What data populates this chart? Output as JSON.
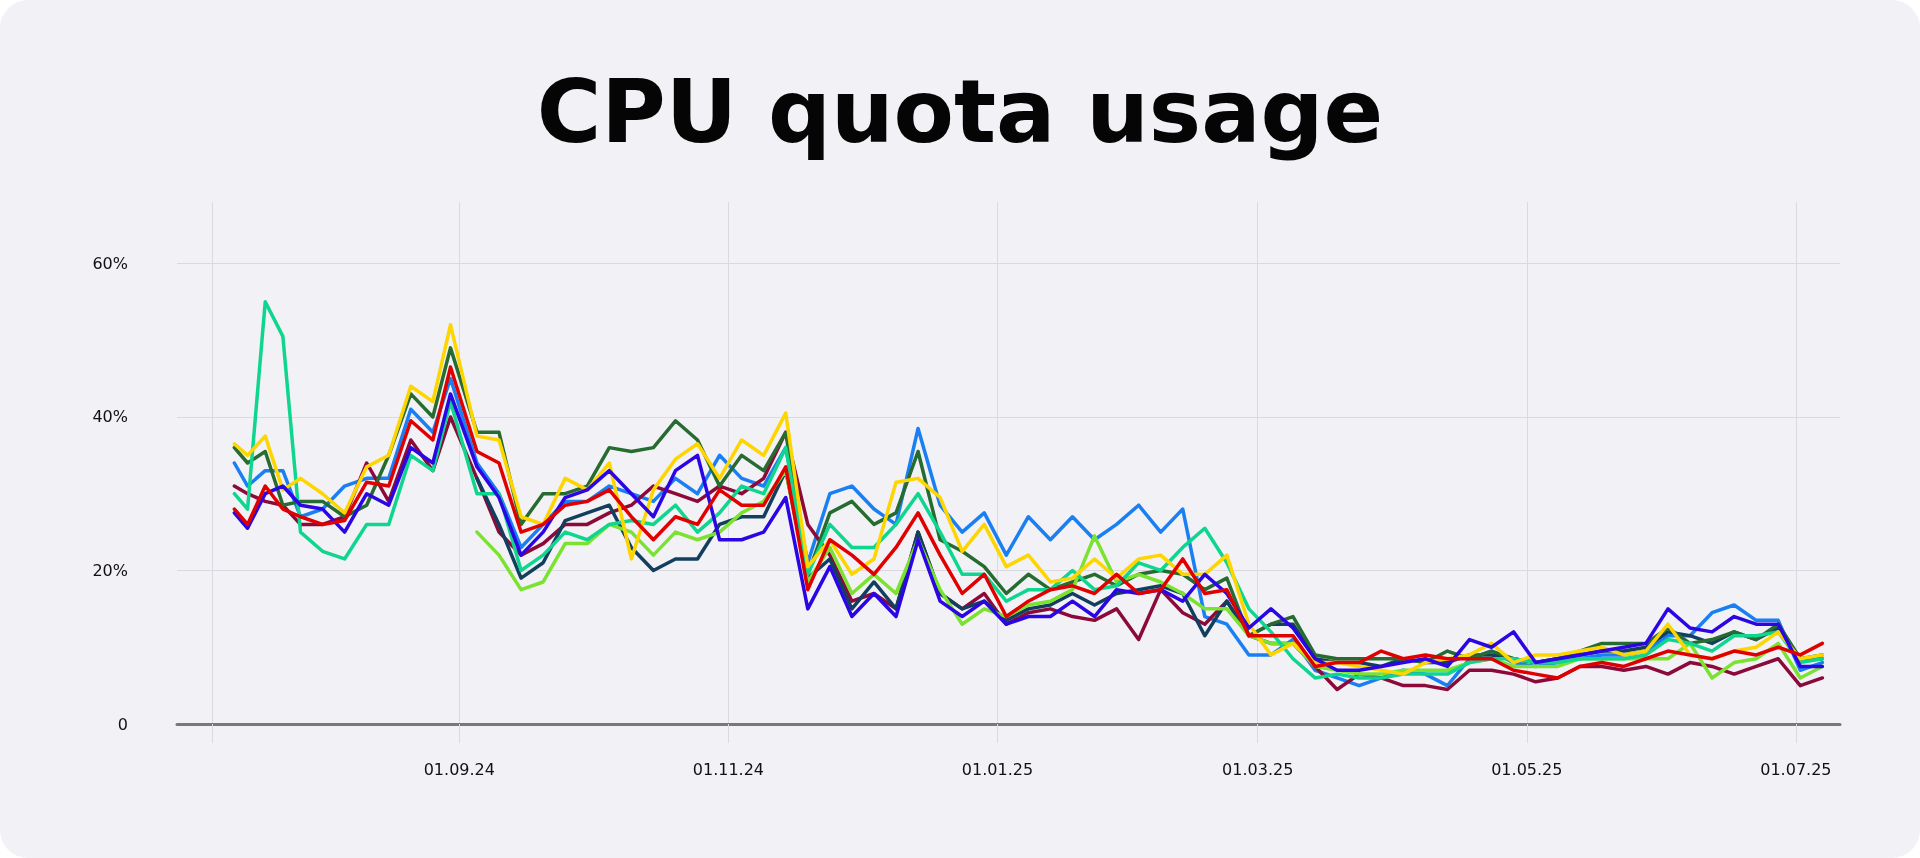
{
  "chart_data": {
    "type": "line",
    "title": "CPU quota usage",
    "x": [
      "2024-07-12",
      "2024-07-15",
      "2024-07-19",
      "2024-07-23",
      "2024-07-27",
      "2024-08-01",
      "2024-08-06",
      "2024-08-11",
      "2024-08-16",
      "2024-08-21",
      "2024-08-26",
      "2024-08-30",
      "2024-09-05",
      "2024-09-10",
      "2024-09-15",
      "2024-09-20",
      "2024-09-25",
      "2024-09-30",
      "2024-10-05",
      "2024-10-10",
      "2024-10-15",
      "2024-10-20",
      "2024-10-25",
      "2024-10-30",
      "2024-11-04",
      "2024-11-09",
      "2024-11-14",
      "2024-11-19",
      "2024-11-24",
      "2024-11-29",
      "2024-12-04",
      "2024-12-09",
      "2024-12-14",
      "2024-12-19",
      "2024-12-24",
      "2024-12-29",
      "2025-01-03",
      "2025-01-08",
      "2025-01-13",
      "2025-01-18",
      "2025-01-23",
      "2025-01-28",
      "2025-02-02",
      "2025-02-07",
      "2025-02-12",
      "2025-02-17",
      "2025-02-22",
      "2025-02-27",
      "2025-03-04",
      "2025-03-09",
      "2025-03-14",
      "2025-03-19",
      "2025-03-24",
      "2025-03-29",
      "2025-04-03",
      "2025-04-08",
      "2025-04-13",
      "2025-04-18",
      "2025-04-23",
      "2025-04-28",
      "2025-05-03",
      "2025-05-08",
      "2025-05-13",
      "2025-05-18",
      "2025-05-23",
      "2025-05-28",
      "2025-06-02",
      "2025-06-07",
      "2025-06-12",
      "2025-06-17",
      "2025-06-22",
      "2025-06-27",
      "2025-07-02",
      "2025-07-07"
    ],
    "xlim": [
      "2024-06-29",
      "2025-07-11"
    ],
    "xticks": [
      {
        "value": "2024-07-07",
        "label": null
      },
      {
        "value": "2024-09-01",
        "label": "01.09.24"
      },
      {
        "value": "2024-11-01",
        "label": "01.11.24"
      },
      {
        "value": "2025-01-01",
        "label": "01.01.25"
      },
      {
        "value": "2025-03-01",
        "label": "01.03.25"
      },
      {
        "value": "2025-05-01",
        "label": "01.05.25"
      },
      {
        "value": "2025-07-01",
        "label": "01.07.25"
      }
    ],
    "ylim": [
      0,
      68
    ],
    "yticks": [
      0,
      {
        "value": 20,
        "label": "20%"
      },
      {
        "value": 40,
        "label": "40%"
      },
      {
        "value": 60,
        "label": "60%"
      }
    ],
    "grid": true,
    "series": [
      {
        "color": "#1a7ff2",
        "values": [
          34,
          31,
          33,
          33,
          27,
          28,
          31,
          32,
          32,
          41,
          38,
          45,
          34,
          30,
          23,
          26,
          29,
          29,
          31,
          30,
          29,
          32,
          30,
          35,
          32,
          31,
          36,
          21,
          30,
          31,
          28,
          26,
          38.5,
          28.5,
          25,
          27.5,
          22,
          27,
          24,
          27,
          24,
          26,
          28.5,
          25,
          28,
          14,
          13,
          9,
          9,
          11,
          7,
          6,
          5,
          6,
          7,
          6.5,
          5,
          8.5,
          9.5,
          8,
          7.5,
          8,
          8.5,
          9,
          9,
          9.5,
          11.5,
          11.5,
          14.5,
          15.5,
          13.5,
          13.5,
          7,
          8
        ]
      },
      {
        "color": "#8c0a3a",
        "values": [
          31,
          30,
          29,
          28.5,
          26,
          26,
          27,
          34,
          29,
          37,
          33,
          40,
          32,
          25,
          22,
          23.5,
          26,
          26,
          27.5,
          28.5,
          31,
          30,
          29,
          31,
          30,
          32,
          38,
          26,
          22,
          16,
          17,
          15,
          25,
          17,
          15,
          17,
          13,
          14.5,
          15,
          14,
          13.5,
          15,
          11,
          17.5,
          14.5,
          13,
          16,
          11.5,
          10.5,
          10.5,
          7.5,
          4.5,
          6.5,
          6,
          5,
          5,
          4.5,
          7,
          7,
          6.5,
          5.5,
          6,
          7.5,
          7.5,
          7,
          7.5,
          6.5,
          8,
          7.5,
          6.5,
          7.5,
          8.5,
          5,
          6
        ]
      },
      {
        "color": "#123f5e",
        "values": [
          null,
          null,
          null,
          null,
          null,
          null,
          null,
          null,
          null,
          null,
          null,
          null,
          32,
          26,
          19,
          21,
          26.5,
          27.5,
          28.5,
          23,
          20,
          21.5,
          21.5,
          26,
          27,
          27,
          33,
          19,
          21.5,
          15,
          18.5,
          15,
          25,
          17,
          15,
          16,
          13.5,
          15,
          15.5,
          17,
          15.5,
          17,
          17.5,
          18,
          17,
          11.5,
          16,
          11.5,
          13,
          13,
          8.5,
          8,
          8,
          7.5,
          8.5,
          8,
          8,
          9,
          9,
          8.5,
          8,
          8.5,
          9,
          9.5,
          9.5,
          10,
          12,
          11.5,
          10.5,
          12,
          11,
          12.5,
          8.5,
          8.5
        ]
      },
      {
        "color": "#266b2f",
        "values": [
          36,
          34,
          35.5,
          28.5,
          29,
          29,
          27,
          28.5,
          35,
          43,
          40,
          49,
          38,
          38,
          26,
          30,
          30,
          31,
          36,
          35.5,
          36,
          39.5,
          37,
          31,
          35,
          33,
          38,
          19.5,
          27.5,
          29,
          26,
          27.5,
          35.5,
          24,
          22.5,
          20.5,
          17,
          19.5,
          17.5,
          18.5,
          19.5,
          18,
          19.5,
          20,
          19.5,
          17.5,
          19,
          11.5,
          13,
          14,
          9,
          8.5,
          8.5,
          8.5,
          8.5,
          8,
          9.5,
          8.5,
          9.5,
          8.5,
          8,
          8.5,
          9.5,
          10.5,
          10.5,
          10.5,
          12.5,
          10.5,
          11,
          12,
          11,
          13,
          8.5,
          9
        ]
      },
      {
        "color": "#7be22f",
        "values": [
          null,
          null,
          null,
          null,
          null,
          null,
          null,
          null,
          null,
          null,
          null,
          null,
          25,
          22,
          17.5,
          18.5,
          23.5,
          23.5,
          26,
          25,
          22,
          25,
          24,
          25,
          27.5,
          29,
          33,
          18.5,
          23,
          17,
          19.5,
          17,
          24,
          17.5,
          13,
          15,
          14,
          15.5,
          16,
          17.5,
          24.5,
          18.5,
          19.5,
          18.5,
          17,
          15,
          15,
          11.5,
          10.5,
          10.5,
          7.5,
          7,
          6.5,
          6.5,
          7,
          7,
          7,
          8,
          8.5,
          7.5,
          7.5,
          7.5,
          8.5,
          8.5,
          8.5,
          8.5,
          8.5,
          10.5,
          6,
          8,
          8.5,
          10.5,
          6,
          7.5
        ]
      },
      {
        "color": "#0fd68e",
        "values": [
          30,
          28,
          55,
          50.5,
          25,
          22.5,
          21.5,
          26,
          26,
          35,
          33,
          42,
          30,
          30,
          20,
          22,
          25,
          24,
          26,
          26.5,
          26,
          28.5,
          25,
          27.5,
          31,
          30,
          36,
          19.5,
          26,
          23,
          23,
          26,
          30,
          25,
          19.5,
          19.5,
          16,
          17.5,
          17.5,
          20,
          17.5,
          18,
          21,
          20,
          23,
          25.5,
          21,
          15,
          12,
          8.5,
          6,
          6.5,
          6,
          6,
          6.5,
          6.5,
          6.5,
          8,
          8.5,
          8.5,
          8,
          8,
          8.5,
          8.5,
          8.5,
          9,
          11,
          10.5,
          9.5,
          11.5,
          11.5,
          12,
          8,
          8.5
        ]
      },
      {
        "color": "#ffd500",
        "values": [
          36.5,
          35,
          37.5,
          30.5,
          32,
          30,
          27.5,
          33.5,
          35,
          44,
          42,
          52,
          37.5,
          37,
          27,
          26,
          32,
          30.5,
          34,
          21.5,
          30.5,
          34.5,
          36.5,
          32,
          37,
          35,
          40.5,
          20.5,
          24,
          19.5,
          21.5,
          31.5,
          32,
          29.5,
          22.5,
          26,
          20.5,
          22,
          18.5,
          19,
          21.5,
          19,
          21.5,
          22,
          19.5,
          19.5,
          22,
          13,
          9,
          10.5,
          8,
          8,
          7.5,
          7,
          6.5,
          8,
          8.5,
          9,
          10.5,
          8,
          9,
          9,
          9.5,
          10,
          9,
          9.5,
          13,
          9,
          8.5,
          9.5,
          10,
          12,
          8.5,
          9
        ]
      },
      {
        "color": "#2b05e3",
        "values": [
          27.5,
          25.5,
          30,
          31,
          28.5,
          28,
          25,
          30,
          28.5,
          36,
          34,
          43,
          33.5,
          29.5,
          22,
          25,
          29.5,
          30.5,
          33,
          30,
          27,
          33,
          35,
          24,
          24,
          25,
          29.5,
          15,
          20.5,
          14,
          17,
          14,
          24,
          16,
          14,
          16,
          13,
          14,
          14,
          16,
          14,
          17.5,
          17,
          17.5,
          16,
          19.5,
          17,
          12.5,
          15,
          12.5,
          8.5,
          7,
          7,
          7.5,
          8,
          8.5,
          7.5,
          11,
          10,
          12,
          8,
          8.5,
          9,
          9.5,
          10,
          10.5,
          15,
          12.5,
          12,
          14,
          13,
          13,
          7.5,
          7.5
        ]
      },
      {
        "color": "#e00000",
        "values": [
          28,
          26,
          31,
          28,
          27,
          26,
          26.5,
          31.5,
          31,
          39.5,
          37,
          46.5,
          35.5,
          34,
          25,
          26,
          28.5,
          29,
          30.5,
          27,
          24,
          27,
          26,
          30.5,
          28.5,
          28.5,
          33.5,
          17.5,
          24,
          22,
          19.5,
          23,
          27.5,
          22,
          17,
          19.5,
          14,
          16,
          17.5,
          18,
          17,
          19.5,
          17,
          17.5,
          21.5,
          17,
          17.5,
          11.5,
          11.5,
          11.5,
          7.5,
          8,
          8,
          9.5,
          8.5,
          9,
          8.5,
          8.5,
          8.5,
          7,
          6.5,
          6,
          7.5,
          8,
          7.5,
          8.5,
          9.5,
          9,
          8.5,
          9.5,
          9,
          10,
          9,
          10.5
        ]
      }
    ]
  }
}
